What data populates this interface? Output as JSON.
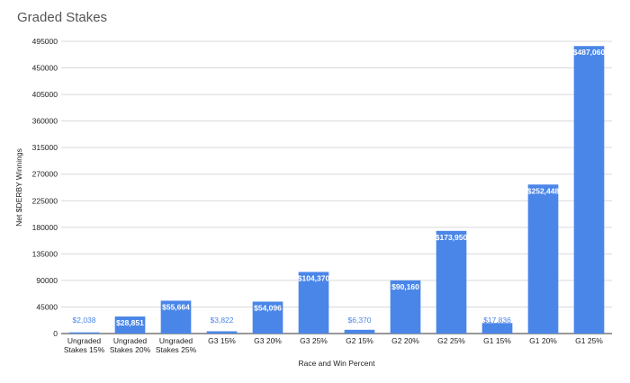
{
  "title": "Graded Stakes",
  "chart_data": {
    "type": "bar",
    "title": "Graded Stakes",
    "xlabel": "Race and Win Percent",
    "ylabel": "Net $DERBY Winnings",
    "ylim": [
      0,
      495000
    ],
    "yticks": [
      "0",
      "45000",
      "90000",
      "135000",
      "180000",
      "225000",
      "270000",
      "315000",
      "360000",
      "405000",
      "450000",
      "495000"
    ],
    "grid": true,
    "bar_color": "#4a86e8",
    "categories": [
      [
        "Ungraded",
        "Stakes 15%"
      ],
      [
        "Ungraded",
        "Stakes 20%"
      ],
      [
        "Ungraded",
        "Stakes 25%"
      ],
      [
        "G3 15%"
      ],
      [
        "G3 20%"
      ],
      [
        "G3 25%"
      ],
      [
        "G2 15%"
      ],
      [
        "G2 20%"
      ],
      [
        "G2 25%"
      ],
      [
        "G1 15%"
      ],
      [
        "G1 20%"
      ],
      [
        "G1 25%"
      ]
    ],
    "values": [
      2038,
      28851,
      55664,
      3822,
      54096,
      104370,
      6370,
      90160,
      173950,
      17836,
      252448,
      487060
    ],
    "labels": [
      "$2,038",
      "$28,851",
      "$55,664",
      "$3,822",
      "$54,096",
      "$104,370",
      "$6,370",
      "$90,160",
      "$173,950",
      "$17,836",
      "$252,448",
      "$487,060"
    ]
  }
}
